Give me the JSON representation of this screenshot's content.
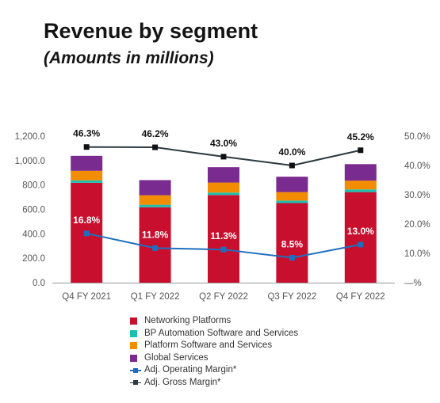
{
  "title": "Revenue by segment",
  "subtitle": "(Amounts in millions)",
  "chart_data": {
    "type": "bar",
    "stacked": true,
    "categories": [
      "Q4 FY 2021",
      "Q1 FY 2022",
      "Q2 FY 2022",
      "Q3 FY 2022",
      "Q4 FY 2022"
    ],
    "series": [
      {
        "name": "Networking Platforms",
        "color": "#c8102e",
        "values": [
          818,
          618,
          718,
          652,
          742
        ]
      },
      {
        "name": "BP Automation Software and Services",
        "color": "#1fbfb0",
        "values": [
          20,
          20,
          20,
          20,
          22
        ]
      },
      {
        "name": "Platform Software and Services",
        "color": "#f28c00",
        "values": [
          78,
          78,
          82,
          70,
          72
        ]
      },
      {
        "name": "Global Services",
        "color": "#7a2b8f",
        "values": [
          123,
          124,
          126,
          126,
          135
        ]
      }
    ],
    "line_series": [
      {
        "name": "Adj. Operating Margin*",
        "color": "#1f6fbf",
        "values": [
          16.8,
          11.8,
          11.3,
          8.5,
          13.0
        ],
        "labels": [
          "16.8%",
          "11.8%",
          "11.3%",
          "8.5%",
          "13.0%"
        ]
      },
      {
        "name": "Adj. Gross Margin*",
        "color": "#2d3a40",
        "values": [
          46.3,
          46.2,
          43.0,
          40.0,
          45.2
        ],
        "labels": [
          "46.3%",
          "46.2%",
          "43.0%",
          "40.0%",
          "45.2%"
        ]
      }
    ],
    "y_left": {
      "ylim": [
        0,
        1200
      ],
      "ticks": [
        0,
        200,
        400,
        600,
        800,
        1000,
        1200
      ],
      "tick_labels": [
        "0.0",
        "200.0",
        "400.0",
        "600.0",
        "800.0",
        "1,000.0",
        "1,200.0"
      ]
    },
    "y_right": {
      "ylim": [
        0,
        50
      ],
      "ticks": [
        0,
        10,
        20,
        30,
        40,
        50
      ],
      "tick_labels": [
        "—%",
        "10.0%",
        "20.0%",
        "30.0%",
        "40.0%",
        "50.0%"
      ]
    },
    "grid": false,
    "legend_position": "bottom"
  }
}
